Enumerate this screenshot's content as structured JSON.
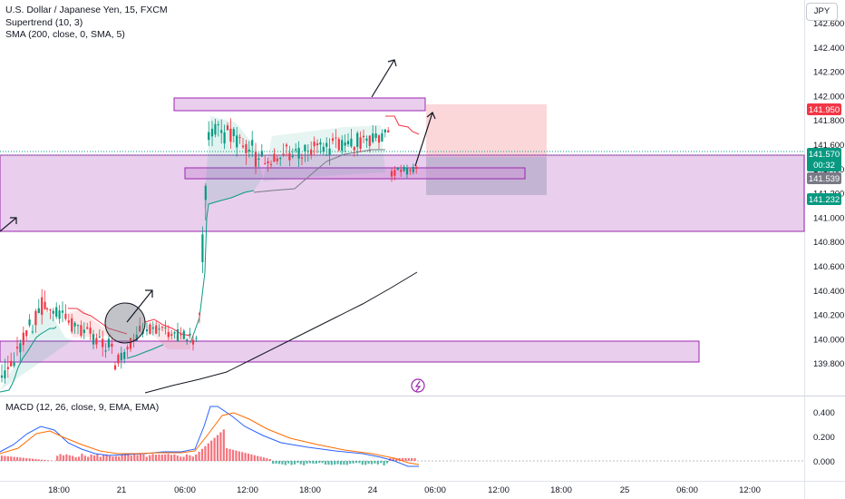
{
  "symbol_title": "U.S. Dollar / Japanese Yen, 15, FXCM",
  "indicators": [
    "Supertrend (10, 3)",
    "SMA (200, close, 0, SMA, 5)"
  ],
  "macd_title": "MACD (12, 26, close, 9, EMA, EMA)",
  "currency_button": "JPY",
  "icon": "lightning-icon",
  "price_axis": {
    "ticks": [
      "142.600",
      "142.400",
      "142.200",
      "142.000",
      "141.800",
      "141.600",
      "141.400",
      "141.200",
      "141.000",
      "140.800",
      "140.600",
      "140.400",
      "140.200",
      "140.000",
      "139.800"
    ],
    "badges": [
      {
        "label": "141.950",
        "color": "#f23645"
      },
      {
        "label": "141.570",
        "sub": "00:32",
        "color": "#089981"
      },
      {
        "label": "141.539",
        "color": "#787b86"
      },
      {
        "label": "141.232",
        "color": "#089981"
      }
    ]
  },
  "macd_axis": {
    "ticks": [
      "0.400",
      "0.200",
      "0.000"
    ]
  },
  "time_axis": {
    "ticks": [
      "18:00",
      "21",
      "06:00",
      "12:00",
      "18:00",
      "24",
      "06:00",
      "12:00",
      "18:00",
      "25",
      "06:00",
      "12:00"
    ]
  },
  "colors": {
    "up": "#089981",
    "down": "#f23645",
    "zone": "#ce93d8",
    "zone_border": "#9c27b0",
    "macd": "#2962ff",
    "signal": "#ff6d00",
    "sma": "#131722"
  }
}
